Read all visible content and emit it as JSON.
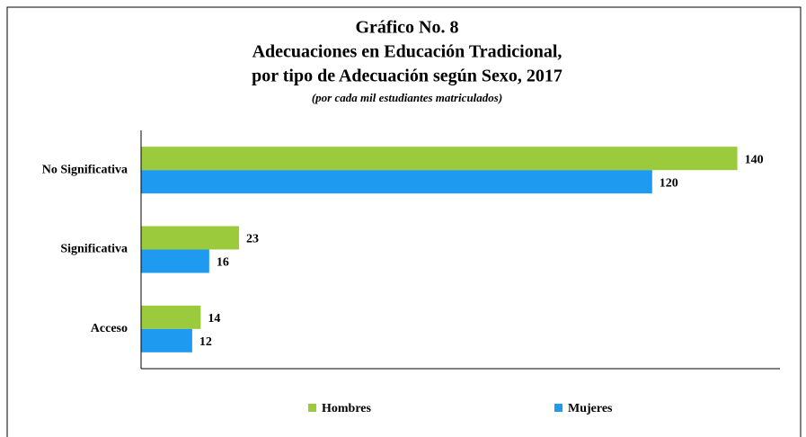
{
  "chart_data": {
    "type": "hbar",
    "title": [
      "Gráfico No. 8",
      "Adecuaciones en Educación Tradicional,",
      "por tipo de Adecuación según Sexo, 2017"
    ],
    "subtitle": "(por cada mil estudiantes matriculados)",
    "categories": [
      "No Significativa",
      "Significativa",
      "Acceso"
    ],
    "series": [
      {
        "name": "Hombres",
        "color": "#9bcb3c",
        "values": [
          140,
          23,
          14
        ]
      },
      {
        "name": "Mujeres",
        "color": "#1e9bf0",
        "values": [
          120,
          16,
          12
        ]
      }
    ],
    "xlim": [
      0,
      150
    ],
    "legend": "bottom"
  }
}
